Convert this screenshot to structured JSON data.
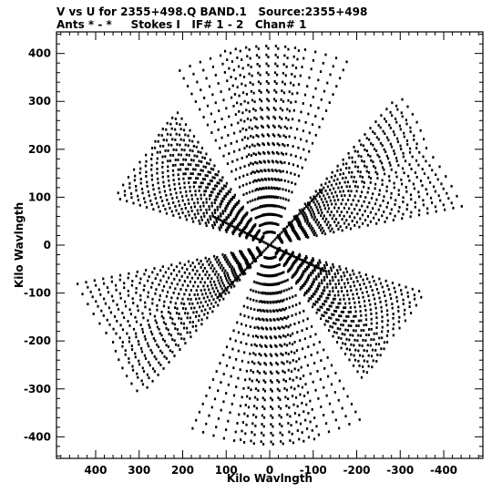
{
  "header": {
    "line1": "V vs U for 2355+498.Q BAND.1   Source:2355+498",
    "line2": "Ants * - *     Stokes I   IF# 1 - 2   Chan# 1"
  },
  "chart_data": {
    "type": "scatter",
    "title": "V vs U for 2355+498.Q BAND.1   Source:2355+498",
    "subtitle": "Ants * - *     Stokes I   IF# 1 - 2   Chan# 1",
    "xlabel": "Kilo Wavlngth",
    "ylabel": "Kilo Wavlngth",
    "x_reversed": true,
    "xlim": [
      490,
      -490
    ],
    "ylim": [
      -445,
      445
    ],
    "x_ticks": [
      400,
      300,
      200,
      100,
      0,
      -100,
      -200,
      -300,
      -400
    ],
    "x_tick_labels": [
      "400",
      "300",
      "200",
      "100",
      "0",
      "-100",
      "-200",
      "-300",
      "-400"
    ],
    "y_ticks": [
      400,
      300,
      200,
      100,
      0,
      -100,
      -200,
      -300,
      -400
    ],
    "y_tick_labels": [
      "400",
      "300",
      "200",
      "100",
      "0",
      "-100",
      "-200",
      "-300",
      "-400"
    ],
    "grid": false,
    "marker_color": "#000000",
    "baseline_vectors": [
      {
        "u": 15,
        "v": 90
      },
      {
        "u": -75,
        "v": 45
      },
      {
        "u": -60,
        "v": -45
      },
      {
        "u": 8,
        "v": -92
      },
      {
        "u": 80,
        "v": -45
      },
      {
        "u": 60,
        "v": 42
      }
    ],
    "track_scales": [
      0.3,
      0.5,
      0.7,
      0.9,
      1.1,
      1.3,
      1.5,
      1.7,
      1.9,
      2.1,
      2.3,
      2.5,
      2.7,
      2.9,
      3.1,
      3.3,
      3.5,
      3.7,
      3.9,
      4.1,
      4.3,
      4.5
    ],
    "hour_angles": [
      -0.9,
      -0.75,
      -0.6,
      -0.45,
      -0.3,
      -0.15,
      0,
      0.15,
      0.3,
      0.45,
      0.6,
      0.75,
      0.9
    ],
    "track_rotation_scale": 0.35,
    "track_stretch": 1.1,
    "central_arms": [
      {
        "u_end": 0,
        "v_end": 0,
        "u_start": -120,
        "v_start": 115
      },
      {
        "u_start": 0,
        "v_start": 0,
        "u_end": 120,
        "v_end": -110
      },
      {
        "u_start": 0,
        "v_start": 0,
        "u_end": 130,
        "v_end": 60
      },
      {
        "u_start": 0,
        "v_start": 0,
        "u_end": -130,
        "v_end": -55
      }
    ],
    "central_arm_points": 30
  }
}
